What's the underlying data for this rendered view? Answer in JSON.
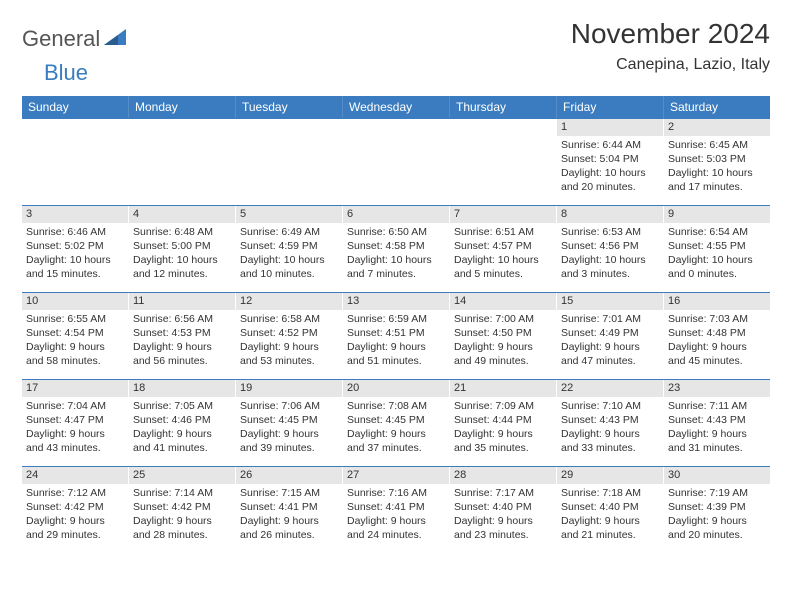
{
  "logo": {
    "text1": "General",
    "text2": "Blue"
  },
  "title": "November 2024",
  "location": "Canepina, Lazio, Italy",
  "weekdays": [
    "Sunday",
    "Monday",
    "Tuesday",
    "Wednesday",
    "Thursday",
    "Friday",
    "Saturday"
  ],
  "colors": {
    "header_bg": "#3a7cbf",
    "strip_bg": "#e6e6e6",
    "border": "#3a7cbf",
    "text": "#333333"
  },
  "weeks": [
    [
      {
        "empty": true
      },
      {
        "empty": true
      },
      {
        "empty": true
      },
      {
        "empty": true
      },
      {
        "empty": true
      },
      {
        "num": "1",
        "sunrise": "Sunrise: 6:44 AM",
        "sunset": "Sunset: 5:04 PM",
        "daylight": "Daylight: 10 hours and 20 minutes."
      },
      {
        "num": "2",
        "sunrise": "Sunrise: 6:45 AM",
        "sunset": "Sunset: 5:03 PM",
        "daylight": "Daylight: 10 hours and 17 minutes."
      }
    ],
    [
      {
        "num": "3",
        "sunrise": "Sunrise: 6:46 AM",
        "sunset": "Sunset: 5:02 PM",
        "daylight": "Daylight: 10 hours and 15 minutes."
      },
      {
        "num": "4",
        "sunrise": "Sunrise: 6:48 AM",
        "sunset": "Sunset: 5:00 PM",
        "daylight": "Daylight: 10 hours and 12 minutes."
      },
      {
        "num": "5",
        "sunrise": "Sunrise: 6:49 AM",
        "sunset": "Sunset: 4:59 PM",
        "daylight": "Daylight: 10 hours and 10 minutes."
      },
      {
        "num": "6",
        "sunrise": "Sunrise: 6:50 AM",
        "sunset": "Sunset: 4:58 PM",
        "daylight": "Daylight: 10 hours and 7 minutes."
      },
      {
        "num": "7",
        "sunrise": "Sunrise: 6:51 AM",
        "sunset": "Sunset: 4:57 PM",
        "daylight": "Daylight: 10 hours and 5 minutes."
      },
      {
        "num": "8",
        "sunrise": "Sunrise: 6:53 AM",
        "sunset": "Sunset: 4:56 PM",
        "daylight": "Daylight: 10 hours and 3 minutes."
      },
      {
        "num": "9",
        "sunrise": "Sunrise: 6:54 AM",
        "sunset": "Sunset: 4:55 PM",
        "daylight": "Daylight: 10 hours and 0 minutes."
      }
    ],
    [
      {
        "num": "10",
        "sunrise": "Sunrise: 6:55 AM",
        "sunset": "Sunset: 4:54 PM",
        "daylight": "Daylight: 9 hours and 58 minutes."
      },
      {
        "num": "11",
        "sunrise": "Sunrise: 6:56 AM",
        "sunset": "Sunset: 4:53 PM",
        "daylight": "Daylight: 9 hours and 56 minutes."
      },
      {
        "num": "12",
        "sunrise": "Sunrise: 6:58 AM",
        "sunset": "Sunset: 4:52 PM",
        "daylight": "Daylight: 9 hours and 53 minutes."
      },
      {
        "num": "13",
        "sunrise": "Sunrise: 6:59 AM",
        "sunset": "Sunset: 4:51 PM",
        "daylight": "Daylight: 9 hours and 51 minutes."
      },
      {
        "num": "14",
        "sunrise": "Sunrise: 7:00 AM",
        "sunset": "Sunset: 4:50 PM",
        "daylight": "Daylight: 9 hours and 49 minutes."
      },
      {
        "num": "15",
        "sunrise": "Sunrise: 7:01 AM",
        "sunset": "Sunset: 4:49 PM",
        "daylight": "Daylight: 9 hours and 47 minutes."
      },
      {
        "num": "16",
        "sunrise": "Sunrise: 7:03 AM",
        "sunset": "Sunset: 4:48 PM",
        "daylight": "Daylight: 9 hours and 45 minutes."
      }
    ],
    [
      {
        "num": "17",
        "sunrise": "Sunrise: 7:04 AM",
        "sunset": "Sunset: 4:47 PM",
        "daylight": "Daylight: 9 hours and 43 minutes."
      },
      {
        "num": "18",
        "sunrise": "Sunrise: 7:05 AM",
        "sunset": "Sunset: 4:46 PM",
        "daylight": "Daylight: 9 hours and 41 minutes."
      },
      {
        "num": "19",
        "sunrise": "Sunrise: 7:06 AM",
        "sunset": "Sunset: 4:45 PM",
        "daylight": "Daylight: 9 hours and 39 minutes."
      },
      {
        "num": "20",
        "sunrise": "Sunrise: 7:08 AM",
        "sunset": "Sunset: 4:45 PM",
        "daylight": "Daylight: 9 hours and 37 minutes."
      },
      {
        "num": "21",
        "sunrise": "Sunrise: 7:09 AM",
        "sunset": "Sunset: 4:44 PM",
        "daylight": "Daylight: 9 hours and 35 minutes."
      },
      {
        "num": "22",
        "sunrise": "Sunrise: 7:10 AM",
        "sunset": "Sunset: 4:43 PM",
        "daylight": "Daylight: 9 hours and 33 minutes."
      },
      {
        "num": "23",
        "sunrise": "Sunrise: 7:11 AM",
        "sunset": "Sunset: 4:43 PM",
        "daylight": "Daylight: 9 hours and 31 minutes."
      }
    ],
    [
      {
        "num": "24",
        "sunrise": "Sunrise: 7:12 AM",
        "sunset": "Sunset: 4:42 PM",
        "daylight": "Daylight: 9 hours and 29 minutes."
      },
      {
        "num": "25",
        "sunrise": "Sunrise: 7:14 AM",
        "sunset": "Sunset: 4:42 PM",
        "daylight": "Daylight: 9 hours and 28 minutes."
      },
      {
        "num": "26",
        "sunrise": "Sunrise: 7:15 AM",
        "sunset": "Sunset: 4:41 PM",
        "daylight": "Daylight: 9 hours and 26 minutes."
      },
      {
        "num": "27",
        "sunrise": "Sunrise: 7:16 AM",
        "sunset": "Sunset: 4:41 PM",
        "daylight": "Daylight: 9 hours and 24 minutes."
      },
      {
        "num": "28",
        "sunrise": "Sunrise: 7:17 AM",
        "sunset": "Sunset: 4:40 PM",
        "daylight": "Daylight: 9 hours and 23 minutes."
      },
      {
        "num": "29",
        "sunrise": "Sunrise: 7:18 AM",
        "sunset": "Sunset: 4:40 PM",
        "daylight": "Daylight: 9 hours and 21 minutes."
      },
      {
        "num": "30",
        "sunrise": "Sunrise: 7:19 AM",
        "sunset": "Sunset: 4:39 PM",
        "daylight": "Daylight: 9 hours and 20 minutes."
      }
    ]
  ]
}
